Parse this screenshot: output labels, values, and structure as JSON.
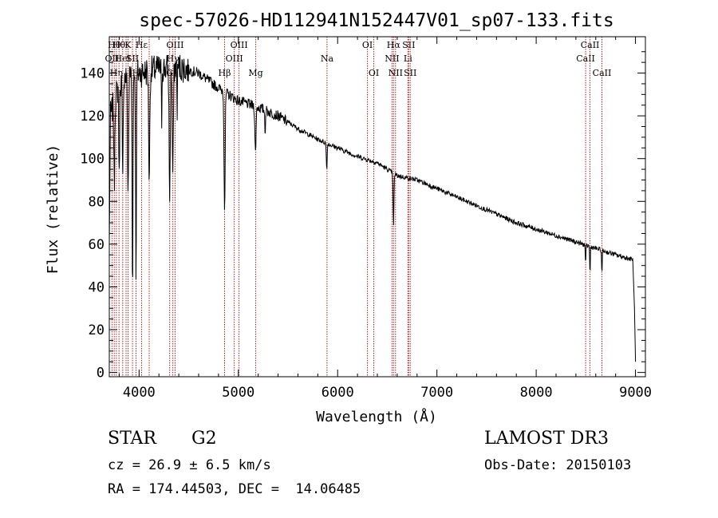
{
  "chart_data": {
    "type": "line",
    "title": "spec-57026-HD112941N152447V01_sp07-133.fits",
    "xlabel": "Wavelength (Å)",
    "ylabel": "Flux (relative)",
    "xlim": [
      3700,
      9100
    ],
    "ylim": [
      -2,
      157
    ],
    "xticks": [
      4000,
      5000,
      6000,
      7000,
      8000,
      9000
    ],
    "xtick_labels": [
      "4000",
      "5000",
      "6000",
      "7000",
      "8000",
      "9000"
    ],
    "yticks": [
      0,
      20,
      40,
      60,
      80,
      100,
      120,
      140
    ],
    "ytick_labels": [
      "0",
      "20",
      "40",
      "60",
      "80",
      "100",
      "120",
      "140"
    ],
    "line_color": "#000000",
    "marker_color": "#b22222",
    "continuum": [
      [
        3700,
        118
      ],
      [
        3800,
        135
      ],
      [
        3900,
        140
      ],
      [
        4000,
        140
      ],
      [
        4200,
        142
      ],
      [
        4400,
        143
      ],
      [
        4600,
        140
      ],
      [
        4800,
        133
      ],
      [
        5000,
        127
      ],
      [
        5200,
        124
      ],
      [
        5400,
        120
      ],
      [
        5600,
        114
      ],
      [
        5800,
        109
      ],
      [
        6000,
        105
      ],
      [
        6200,
        101
      ],
      [
        6400,
        98
      ],
      [
        6600,
        92
      ],
      [
        6800,
        90
      ],
      [
        7000,
        86
      ],
      [
        7200,
        82
      ],
      [
        7400,
        78
      ],
      [
        7600,
        74
      ],
      [
        7800,
        70
      ],
      [
        8000,
        67
      ],
      [
        8200,
        64
      ],
      [
        8400,
        61
      ],
      [
        8600,
        58
      ],
      [
        8800,
        55
      ],
      [
        8950,
        53
      ]
    ],
    "absorption_features": [
      {
        "x": 3750,
        "depth": 40,
        "width": 6
      },
      {
        "x": 3800,
        "depth": 45,
        "width": 6
      },
      {
        "x": 3835,
        "depth": 50,
        "width": 6
      },
      {
        "x": 3889,
        "depth": 55,
        "width": 8
      },
      {
        "x": 3934,
        "depth": 100,
        "width": 6
      },
      {
        "x": 3969,
        "depth": 95,
        "width": 6
      },
      {
        "x": 4102,
        "depth": 50,
        "width": 8
      },
      {
        "x": 4227,
        "depth": 25,
        "width": 4
      },
      {
        "x": 4308,
        "depth": 60,
        "width": 8
      },
      {
        "x": 4340,
        "depth": 50,
        "width": 8
      },
      {
        "x": 4383,
        "depth": 20,
        "width": 4
      },
      {
        "x": 4861,
        "depth": 55,
        "width": 8
      },
      {
        "x": 5172,
        "depth": 22,
        "width": 8
      },
      {
        "x": 5270,
        "depth": 10,
        "width": 5
      },
      {
        "x": 5890,
        "depth": 12,
        "width": 6
      },
      {
        "x": 6563,
        "depth": 25,
        "width": 6
      },
      {
        "x": 8498,
        "depth": 10,
        "width": 4
      },
      {
        "x": 8542,
        "depth": 14,
        "width": 4
      },
      {
        "x": 8662,
        "depth": 12,
        "width": 4
      }
    ],
    "line_markers": [
      {
        "x": 3727,
        "label": "OII",
        "row": 2
      },
      {
        "x": 3750,
        "label": "Hθ",
        "row": 1
      },
      {
        "x": 3771,
        "label": "Hη",
        "row": 3
      },
      {
        "x": 3798,
        "label": "Hθ",
        "row": 1
      },
      {
        "x": 3835,
        "label": "HeI",
        "row": 2
      },
      {
        "x": 3869,
        "label": "",
        "row": 0
      },
      {
        "x": 3889,
        "label": "K",
        "row": 1
      },
      {
        "x": 3934,
        "label": "SII",
        "row": 2
      },
      {
        "x": 3969,
        "label": "H",
        "row": 3
      },
      {
        "x": 4026,
        "label": "Hε",
        "row": 1
      },
      {
        "x": 4102,
        "label": "",
        "row": 0
      },
      {
        "x": 4308,
        "label": "G",
        "row": 3
      },
      {
        "x": 4340,
        "label": "Hγ",
        "row": 2
      },
      {
        "x": 4363,
        "label": "OIII",
        "row": 1
      },
      {
        "x": 4861,
        "label": "Hβ",
        "row": 3
      },
      {
        "x": 4959,
        "label": "OIII",
        "row": 2
      },
      {
        "x": 5007,
        "label": "OIII",
        "row": 1
      },
      {
        "x": 5175,
        "label": "Mg",
        "row": 3
      },
      {
        "x": 5893,
        "label": "Na",
        "row": 2
      },
      {
        "x": 6300,
        "label": "OI",
        "row": 1
      },
      {
        "x": 6364,
        "label": "OI",
        "row": 3
      },
      {
        "x": 6548,
        "label": "NII",
        "row": 2
      },
      {
        "x": 6563,
        "label": "Hα",
        "row": 1
      },
      {
        "x": 6583,
        "label": "NII",
        "row": 3
      },
      {
        "x": 6708,
        "label": "Li",
        "row": 2
      },
      {
        "x": 6716,
        "label": "SII",
        "row": 1
      },
      {
        "x": 6731,
        "label": "SII",
        "row": 3
      },
      {
        "x": 8498,
        "label": "CaII",
        "row": 2
      },
      {
        "x": 8542,
        "label": "CaII",
        "row": 1
      },
      {
        "x": 8662,
        "label": "CaII",
        "row": 3
      }
    ]
  },
  "info": {
    "object_class": "STAR",
    "subclass": "G2",
    "survey": "LAMOST DR3",
    "cz": "cz = 26.9 ± 6.5 km/s",
    "obs_date": "Obs-Date: 20150103",
    "coords": "RA = 174.44503, DEC =  14.06485"
  }
}
